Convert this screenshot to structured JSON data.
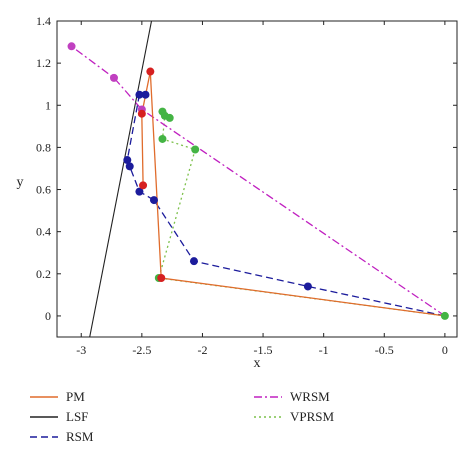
{
  "chart_data": {
    "type": "line",
    "title": "",
    "xlabel": "x",
    "ylabel": "y",
    "xlim": [
      -3.2,
      0.1
    ],
    "ylim": [
      -0.1,
      1.4
    ],
    "xticks": [
      -3,
      -2.5,
      -2,
      -1.5,
      -1,
      -0.5,
      0
    ],
    "xtick_labels": [
      "-3",
      "-2.5",
      "-2",
      "-1.5",
      "-1",
      "-0.5",
      "0"
    ],
    "yticks": [
      0,
      0.2,
      0.4,
      0.6,
      0.8,
      1.0,
      1.2,
      1.4
    ],
    "ytick_labels": [
      "0",
      "0.2",
      "0.4",
      "0.6",
      "0.8",
      "1",
      "1.2",
      "1.4"
    ],
    "grid": false,
    "legend_position": "bottom, two columns",
    "series": [
      {
        "name": "PM",
        "color": "#e06c2c",
        "style": "solid",
        "marker_color": "#d62020",
        "points": [
          [
            0,
            0
          ],
          [
            -2.34,
            0.18
          ],
          [
            -2.43,
            1.16
          ],
          [
            -2.5,
            0.96
          ],
          [
            -2.49,
            0.62
          ]
        ]
      },
      {
        "name": "LSF",
        "color": "#222222",
        "style": "solid",
        "marker_color": "",
        "points": [
          [
            -2.93,
            -0.1
          ],
          [
            -2.42,
            1.4
          ]
        ]
      },
      {
        "name": "RSM",
        "color": "#1c1c9c",
        "style": "dashed",
        "marker_color": "#1c1c9c",
        "points": [
          [
            0,
            0
          ],
          [
            -1.13,
            0.14
          ],
          [
            -2.07,
            0.26
          ],
          [
            -2.4,
            0.55
          ],
          [
            -2.52,
            0.59
          ],
          [
            -2.6,
            0.71
          ],
          [
            -2.62,
            0.74
          ],
          [
            -2.52,
            1.05
          ],
          [
            -2.47,
            1.05
          ]
        ]
      },
      {
        "name": "WRSM",
        "color": "#c020c0",
        "style": "dashdot",
        "marker_color": "#c040c0",
        "points": [
          [
            0,
            0
          ],
          [
            -2.5,
            0.98
          ],
          [
            -2.73,
            1.13
          ],
          [
            -3.08,
            1.28
          ]
        ]
      },
      {
        "name": "VPRSM",
        "color": "#7cc04a",
        "style": "dotted",
        "marker_color": "#44b444",
        "points": [
          [
            0,
            0
          ],
          [
            -2.36,
            0.18
          ],
          [
            -2.06,
            0.79
          ],
          [
            -2.33,
            0.84
          ],
          [
            -2.31,
            0.95
          ],
          [
            -2.27,
            0.94
          ],
          [
            -2.33,
            0.97
          ]
        ]
      }
    ]
  }
}
